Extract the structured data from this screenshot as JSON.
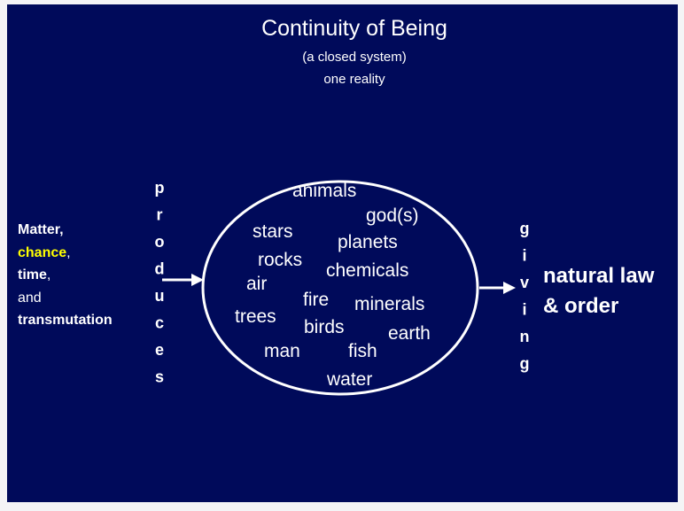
{
  "title": "Continuity of Being",
  "subtitle": [
    "(a closed system)",
    "one reality"
  ],
  "source": {
    "lines": [
      [
        "Matter,"
      ],
      [
        "chance",
        ","
      ],
      [
        "time",
        ","
      ],
      [
        "and"
      ],
      [
        "transmutation"
      ]
    ]
  },
  "verb_in": [
    "p",
    "r",
    "o",
    "d",
    "u",
    "c",
    "e",
    "s"
  ],
  "elements": [
    "animals",
    "god(s)",
    "stars",
    "planets",
    "rocks",
    "chemicals",
    "air",
    "fire",
    "minerals",
    "trees",
    "birds",
    "earth",
    "man",
    "fish",
    "water"
  ],
  "verb_out": [
    "g",
    "i",
    "v",
    "i",
    "n",
    "g"
  ],
  "result": [
    "natural law",
    "& order"
  ]
}
